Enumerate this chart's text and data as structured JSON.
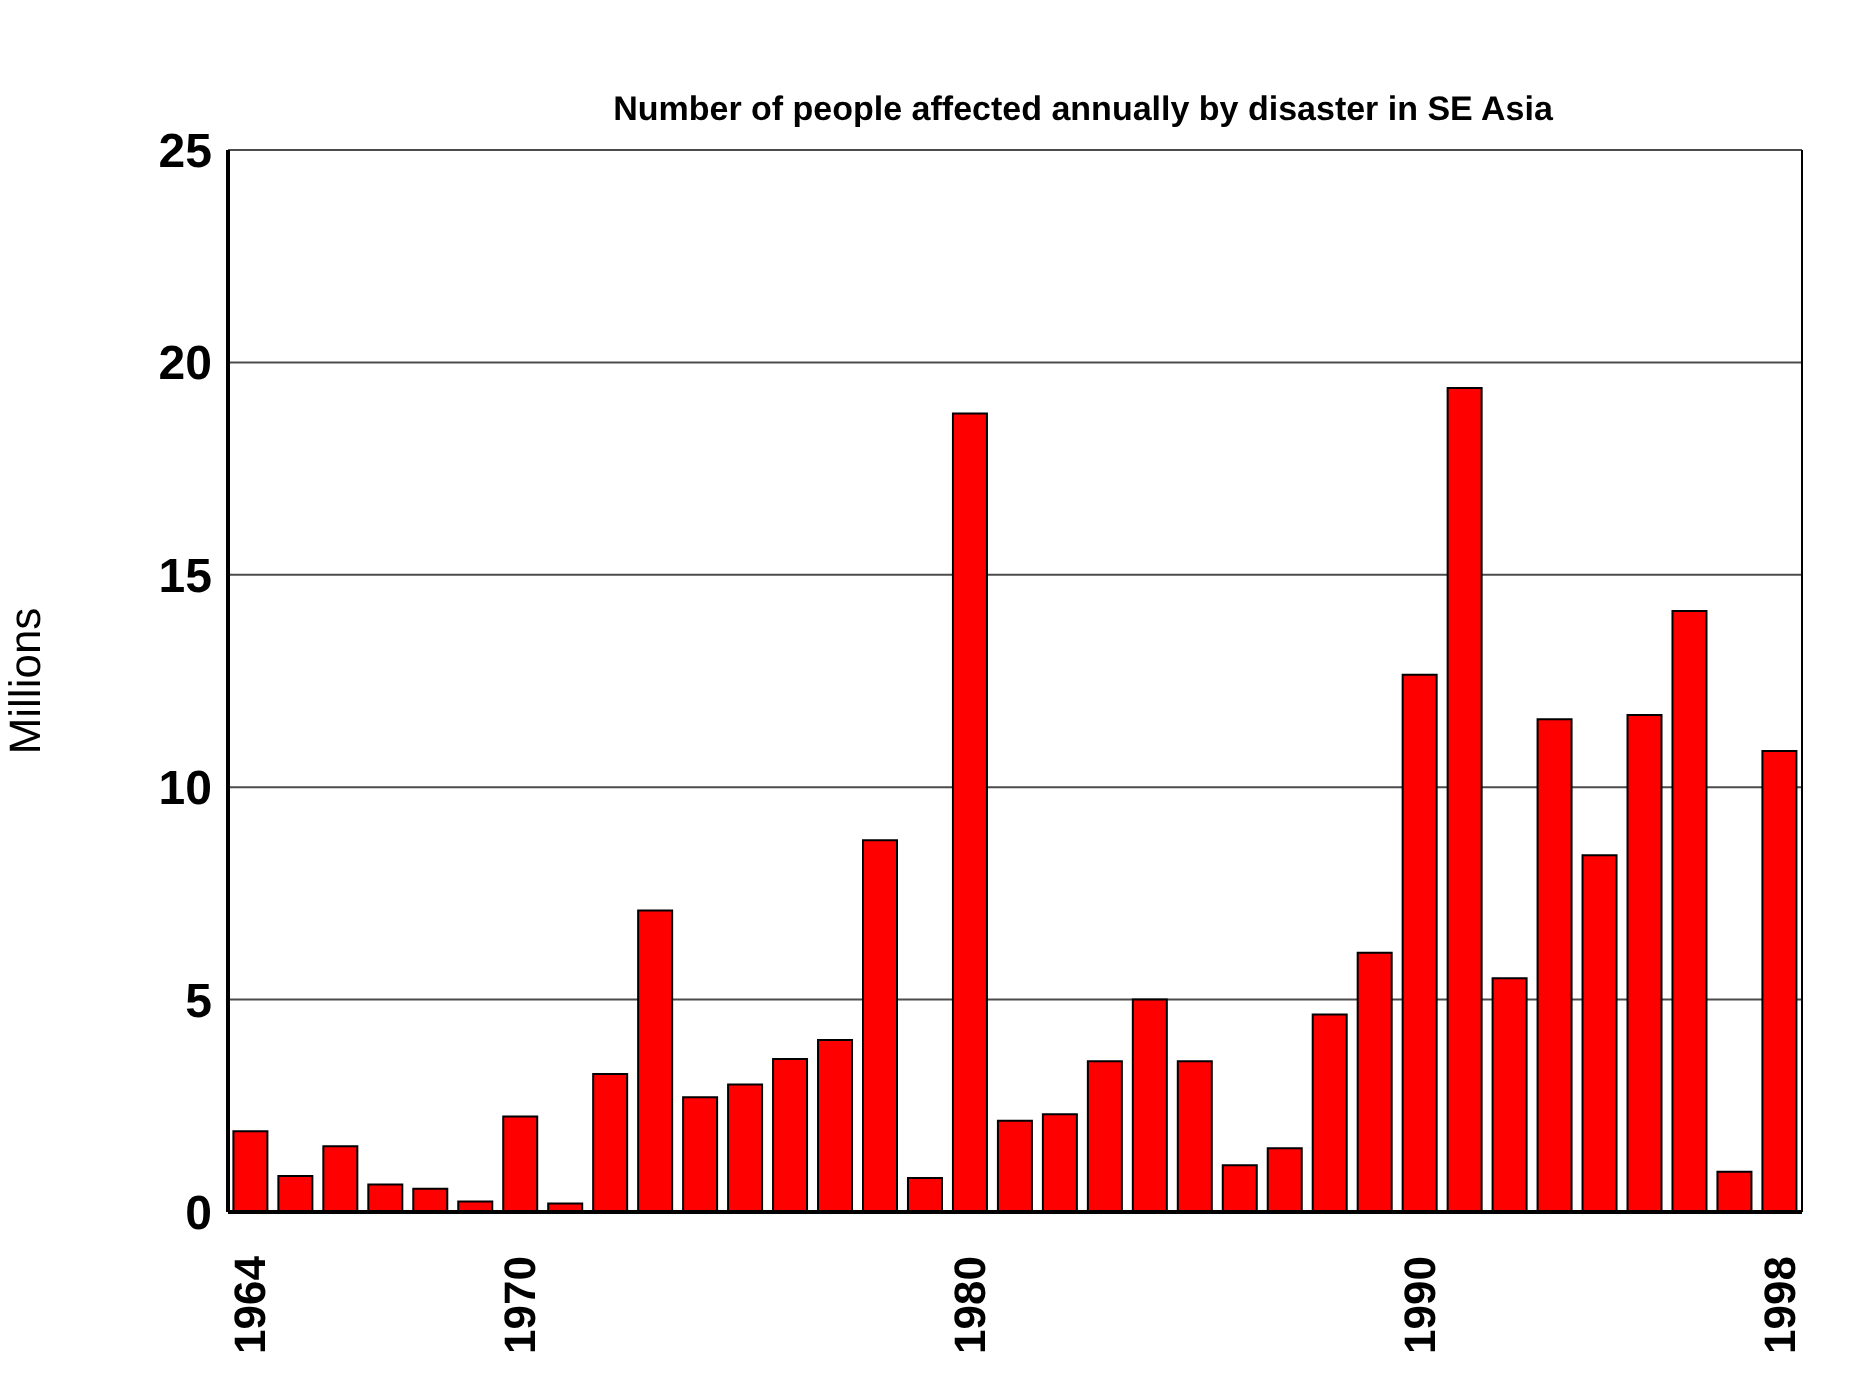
{
  "chart_data": {
    "type": "bar",
    "title": "Number of people affected annually by disaster in SE Asia",
    "ylabel": "Millions",
    "categories": [
      "1964",
      null,
      null,
      null,
      null,
      null,
      "1970",
      null,
      null,
      null,
      null,
      null,
      null,
      null,
      null,
      null,
      "1980",
      null,
      null,
      null,
      null,
      null,
      null,
      null,
      null,
      null,
      "1990",
      null,
      null,
      null,
      null,
      null,
      null,
      null,
      "1998"
    ],
    "values": [
      1.9,
      0.85,
      1.55,
      0.65,
      0.55,
      0.25,
      2.25,
      0.2,
      3.25,
      7.1,
      2.7,
      3.0,
      3.6,
      4.05,
      8.75,
      0.8,
      18.8,
      2.15,
      2.3,
      3.55,
      5.0,
      3.55,
      1.1,
      1.5,
      4.65,
      6.1,
      12.65,
      19.4,
      5.5,
      11.6,
      8.4,
      11.7,
      14.15,
      0.95,
      10.85
    ],
    "color": "#ff0000",
    "ylim": [
      0,
      25
    ],
    "yticks": [
      0,
      5,
      10,
      15,
      20,
      25
    ],
    "grid": "y",
    "legend": false
  }
}
